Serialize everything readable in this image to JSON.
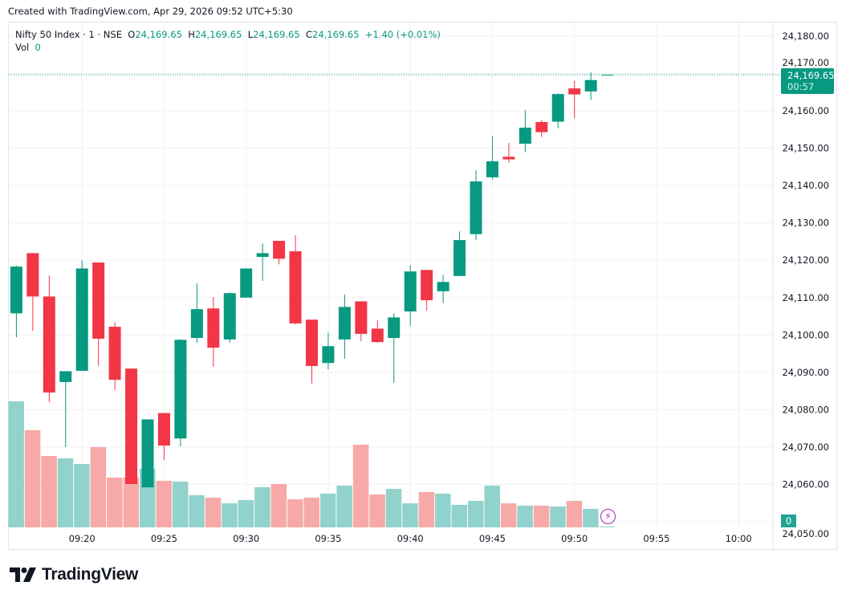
{
  "header": {
    "created": "Created with TradingView.com, Apr 29, 2026 09:52 UTC+5:30"
  },
  "legend": {
    "symbol": "Nifty 50 Index · 1 · NSE",
    "open_label": "O",
    "open": "24,169.65",
    "high_label": "H",
    "high": "24,169.65",
    "low_label": "L",
    "low": "24,169.65",
    "close_label": "C",
    "close": "24,169.65",
    "change": "+1.40 (+0.01%)",
    "vol_label": "Vol",
    "vol": "0"
  },
  "price_tag": {
    "price": "24,169.65",
    "countdown": "00:57"
  },
  "volume_tag": "0",
  "footer": {
    "logo_text": "TradingView"
  },
  "icons": {
    "logo": "tradingview-logo",
    "alert": "lightning-bolt-icon"
  },
  "colors": {
    "up": "#089981",
    "down": "#f23645",
    "up_volume": "#92d2cc",
    "down_volume": "#f7a9a7",
    "last_price": "#089981"
  },
  "chart_data": {
    "type": "candlestick",
    "title": "",
    "y_ticks": [
      "24,180.00",
      "24,170.00",
      "24,160.00",
      "24,150.00",
      "24,140.00",
      "24,130.00",
      "24,120.00",
      "24,110.00",
      "24,100.00",
      "24,090.00",
      "24,080.00",
      "24,070.00",
      "24,060.00",
      "24,050.00"
    ],
    "ylim": [
      24050,
      24180
    ],
    "x_ticks": [
      "09:20",
      "09:25",
      "09:30",
      "09:35",
      "09:40",
      "09:45",
      "09:50",
      "09:55",
      "10:00"
    ],
    "xlim": [
      "09:16",
      "10:00"
    ],
    "grid": true,
    "last_price": 24169.65,
    "volume_note": "relative volume (no volume axis printed)",
    "columns": [
      "time",
      "open",
      "high",
      "low",
      "close",
      "volume"
    ],
    "candles": [
      [
        "09:16",
        24105.8,
        24118.6,
        24099.4,
        24118.3,
        157
      ],
      [
        "09:17",
        24121.9,
        24121.9,
        24101.1,
        24110.3,
        121
      ],
      [
        "09:18",
        24110.3,
        24115.9,
        24082.0,
        24084.6,
        89
      ],
      [
        "09:19",
        24087.4,
        24090.3,
        24070.0,
        24090.3,
        86
      ],
      [
        "09:20",
        24090.4,
        24120.0,
        24090.4,
        24117.8,
        79
      ],
      [
        "09:21",
        24119.4,
        24119.4,
        24091.7,
        24099.0,
        100
      ],
      [
        "09:22",
        24102.2,
        24103.4,
        24085.2,
        24088.0,
        62
      ],
      [
        "09:23",
        24091.0,
        24091.0,
        24060.1,
        24060.1,
        62
      ],
      [
        "09:24",
        24059.2,
        24077.4,
        24059.2,
        24077.4,
        73
      ],
      [
        "09:25",
        24079.1,
        24079.1,
        24066.5,
        24070.4,
        58
      ],
      [
        "09:26",
        24072.3,
        24098.9,
        24070.2,
        24098.7,
        57
      ],
      [
        "09:27",
        24099.2,
        24113.8,
        24097.9,
        24106.9,
        40
      ],
      [
        "09:28",
        24107.1,
        24110.1,
        24091.5,
        24096.6,
        37
      ],
      [
        "09:29",
        24098.8,
        24111.4,
        24097.9,
        24111.2,
        30
      ],
      [
        "09:30",
        24110.0,
        24117.8,
        24110.0,
        24117.8,
        34
      ],
      [
        "09:31",
        24120.9,
        24124.5,
        24114.5,
        24121.9,
        50
      ],
      [
        "09:32",
        24125.2,
        24125.2,
        24118.9,
        24120.4,
        54
      ],
      [
        "09:33",
        24122.4,
        24126.7,
        24102.8,
        24103.1,
        35
      ],
      [
        "09:34",
        24104.1,
        24104.1,
        24087.0,
        24091.7,
        37
      ],
      [
        "09:35",
        24092.5,
        24100.6,
        24090.8,
        24097.0,
        42
      ],
      [
        "09:36",
        24098.8,
        24110.8,
        24093.6,
        24107.5,
        52
      ],
      [
        "09:37",
        24109.0,
        24109.0,
        24098.3,
        24100.3,
        103
      ],
      [
        "09:38",
        24101.7,
        24103.9,
        24097.9,
        24098.1,
        41
      ],
      [
        "09:39",
        24099.2,
        24105.8,
        24087.2,
        24104.7,
        48
      ],
      [
        "09:40",
        24106.3,
        24118.7,
        24102.4,
        24117.0,
        30
      ],
      [
        "09:41",
        24117.4,
        24117.4,
        24106.5,
        24109.3,
        44
      ],
      [
        "09:42",
        24111.7,
        24116.1,
        24108.5,
        24114.2,
        42
      ],
      [
        "09:43",
        24115.8,
        24127.7,
        24115.8,
        24125.4,
        28
      ],
      [
        "09:44",
        24127.0,
        24144.1,
        24125.4,
        24141.1,
        33
      ],
      [
        "09:45",
        24142.2,
        24153.3,
        24141.6,
        24146.5,
        52
      ],
      [
        "09:46",
        24147.7,
        24151.4,
        24146.1,
        24147.0,
        30
      ],
      [
        "09:47",
        24151.2,
        24160.2,
        24148.9,
        24155.5,
        27
      ],
      [
        "09:48",
        24157.0,
        24157.6,
        24153.0,
        24154.3,
        27
      ],
      [
        "09:49",
        24157.1,
        24164.7,
        24155.3,
        24164.5,
        26
      ],
      [
        "09:50",
        24166.0,
        24168.0,
        24158.1,
        24164.4,
        33
      ],
      [
        "09:51",
        24165.2,
        24170.3,
        24162.9,
        24168.25,
        23
      ],
      [
        "09:52",
        24169.65,
        24169.65,
        24169.65,
        24169.65,
        0
      ]
    ]
  }
}
